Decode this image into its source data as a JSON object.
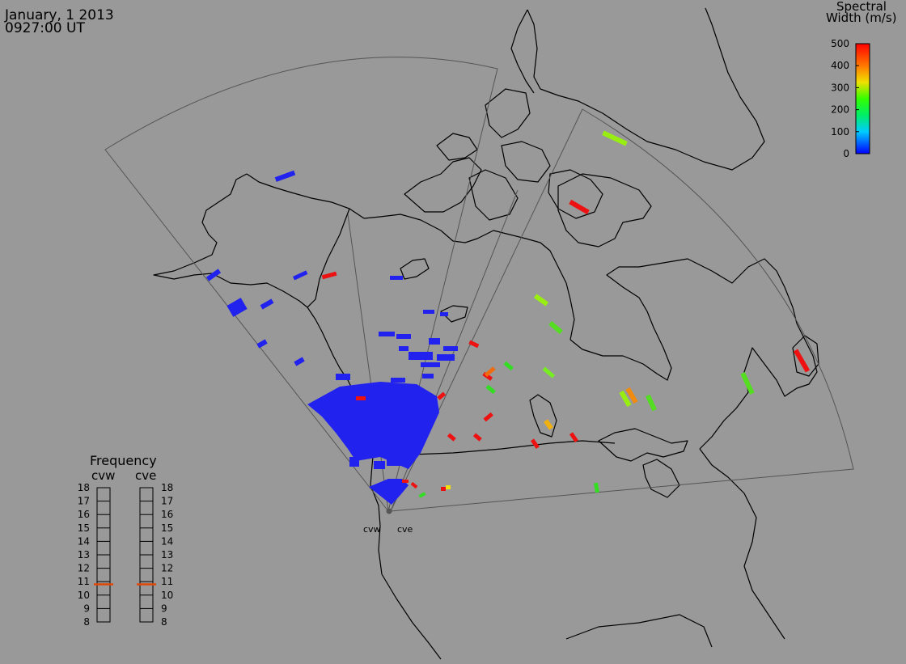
{
  "header": {
    "date": "January, 1 2013",
    "time": "0927:00 UT"
  },
  "colorbar": {
    "title_line1": "Spectral",
    "title_line2": "Width (m/s)",
    "ticks": [
      "0",
      "100",
      "200",
      "300",
      "400",
      "500"
    ],
    "min": 0,
    "max": 500
  },
  "frequency": {
    "title": "Frequency",
    "left_label": "cvw",
    "right_label": "cve",
    "ticks": [
      "8",
      "9",
      "10",
      "11",
      "12",
      "13",
      "14",
      "15",
      "16",
      "17",
      "18"
    ],
    "min": 8,
    "max": 18,
    "cvw_value": 10.8,
    "cve_value": 10.8,
    "marker_color": "#e0480a"
  },
  "radars": [
    {
      "name": "cvw"
    },
    {
      "name": "cve"
    }
  ],
  "colors": {
    "background": "#999999",
    "coast": "#000000",
    "fov": "#555555",
    "blue": "#2222ee",
    "red": "#ee1111",
    "orange": "#f06a10",
    "green": "#33dd22",
    "yellowgreen": "#99ee11",
    "yellow": "#f0c010"
  }
}
